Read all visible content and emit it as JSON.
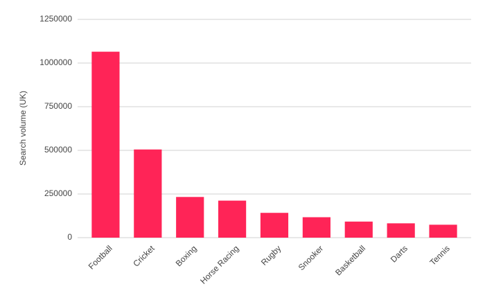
{
  "chart_data": {
    "type": "bar",
    "y_label": "Search volume (UK)",
    "categories": [
      "Football",
      "Cricket",
      "Boxing",
      "Horse Racing",
      "Rugby",
      "Snooker",
      "Basketball",
      "Darts",
      "Tennis"
    ],
    "values": [
      1065000,
      505000,
      233000,
      212000,
      142000,
      117000,
      92000,
      82000,
      74000
    ],
    "color": "#ff2457",
    "ylim": [
      0,
      1250000
    ],
    "yticks": [
      0,
      250000,
      500000,
      750000,
      1000000,
      1250000
    ],
    "grid": true
  }
}
